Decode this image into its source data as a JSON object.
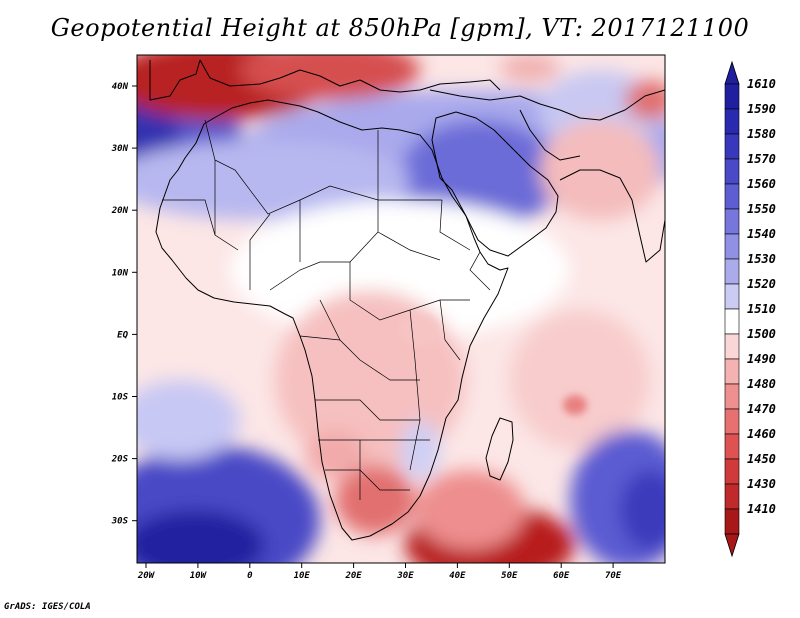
{
  "title": "Geopotential Height at 850hPa [gpm], VT: 2017121100",
  "credit": "GrADS: IGES/COLA",
  "lat_labels": [
    "40N",
    "30N",
    "20N",
    "10N",
    "EQ",
    "10S",
    "20S",
    "30S"
  ],
  "lon_labels": [
    "20W",
    "10W",
    "0",
    "10E",
    "20E",
    "30E",
    "40E",
    "50E",
    "60E",
    "70E"
  ],
  "colorbar": {
    "levels": [
      "1610",
      "1590",
      "1580",
      "1570",
      "1560",
      "1550",
      "1540",
      "1530",
      "1520",
      "1510",
      "1500",
      "1490",
      "1480",
      "1470",
      "1460",
      "1450",
      "1430",
      "1410"
    ],
    "colors": [
      "#1f1fa0",
      "#2a2ab0",
      "#3838bd",
      "#4a4ac8",
      "#5e5ed2",
      "#7676dc",
      "#9090e4",
      "#ababec",
      "#cbcbf4",
      "#ffffff",
      "#fbd6d6",
      "#f5b2b2",
      "#ee9090",
      "#e77070",
      "#de5252",
      "#d03a3a",
      "#c02a2a",
      "#a81818"
    ]
  },
  "labels": {
    "map_region": "Africa and surrounding oceans",
    "field": "850hPa geopotential height"
  }
}
